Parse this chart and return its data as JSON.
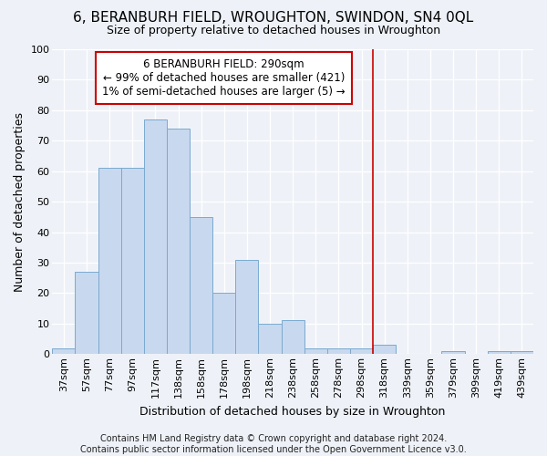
{
  "title": "6, BERANBURH FIELD, WROUGHTON, SWINDON, SN4 0QL",
  "subtitle": "Size of property relative to detached houses in Wroughton",
  "xlabel": "Distribution of detached houses by size in Wroughton",
  "ylabel": "Number of detached properties",
  "bar_color": "#c8d8ee",
  "bar_edge_color": "#7aaad0",
  "background_color": "#eef2f8",
  "categories": [
    "37sqm",
    "57sqm",
    "77sqm",
    "97sqm",
    "117sqm",
    "138sqm",
    "158sqm",
    "178sqm",
    "198sqm",
    "218sqm",
    "238sqm",
    "258sqm",
    "278sqm",
    "298sqm",
    "318sqm",
    "339sqm",
    "359sqm",
    "379sqm",
    "399sqm",
    "419sqm",
    "439sqm"
  ],
  "values": [
    2,
    27,
    61,
    61,
    77,
    74,
    45,
    20,
    31,
    10,
    11,
    2,
    2,
    2,
    3,
    0,
    0,
    1,
    0,
    1,
    1
  ],
  "ylim": [
    0,
    100
  ],
  "yticks": [
    0,
    10,
    20,
    30,
    40,
    50,
    60,
    70,
    80,
    90,
    100
  ],
  "vline_x": 13.5,
  "vline_color": "#cc0000",
  "annotation_text": "6 BERANBURH FIELD: 290sqm\n← 99% of detached houses are smaller (421)\n1% of semi-detached houses are larger (5) →",
  "annotation_box_color": "#ffffff",
  "annotation_box_edge": "#cc0000",
  "footer": "Contains HM Land Registry data © Crown copyright and database right 2024.\nContains public sector information licensed under the Open Government Licence v3.0.",
  "title_fontsize": 11,
  "subtitle_fontsize": 9,
  "ylabel_fontsize": 9,
  "xlabel_fontsize": 9,
  "annotation_fontsize": 8.5,
  "tick_fontsize": 8
}
